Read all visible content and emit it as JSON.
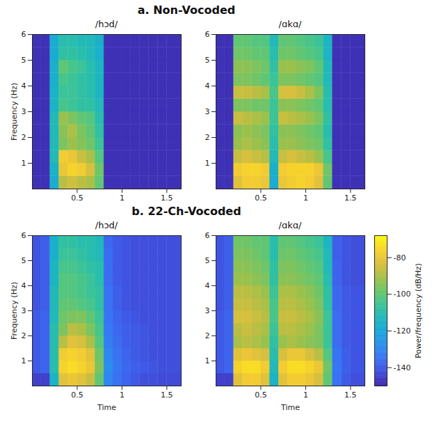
{
  "chart_data": [
    {
      "type": "heatmap",
      "group": "a. Non-Vocoded",
      "title": "/hɔd/",
      "ylabel": "Frequency (Hz)",
      "xlim": [
        0,
        1.66
      ],
      "ylim": [
        0,
        6
      ],
      "xticks": [
        0.5,
        1,
        1.5
      ],
      "yticks": [
        1,
        2,
        3,
        4,
        5,
        6
      ],
      "x_bins": [
        0,
        0.1,
        0.2,
        0.3,
        0.4,
        0.5,
        0.6,
        0.7,
        0.8,
        0.9,
        1,
        1.1,
        1.2,
        1.3,
        1.4,
        1.5,
        1.66
      ],
      "y_bins": [
        0,
        0.5,
        1,
        1.5,
        2,
        2.5,
        3,
        3.5,
        4,
        4.5,
        5,
        5.5,
        6
      ],
      "cells": [
        [
          -148,
          -148,
          -118,
          -88,
          -85,
          -88,
          -90,
          -100,
          -148,
          -148,
          -148,
          -148,
          -148,
          -148,
          -148,
          -148
        ],
        [
          -148,
          -148,
          -115,
          -80,
          -76,
          -78,
          -84,
          -98,
          -148,
          -148,
          -148,
          -148,
          -148,
          -148,
          -148,
          -148
        ],
        [
          -148,
          -148,
          -112,
          -78,
          -80,
          -86,
          -90,
          -102,
          -148,
          -148,
          -148,
          -148,
          -148,
          -148,
          -148,
          -148
        ],
        [
          -148,
          -148,
          -112,
          -96,
          -92,
          -95,
          -98,
          -106,
          -148,
          -148,
          -148,
          -148,
          -148,
          -148,
          -148,
          -148
        ],
        [
          -148,
          -148,
          -112,
          -94,
          -90,
          -96,
          -100,
          -108,
          -148,
          -148,
          -148,
          -148,
          -148,
          -148,
          -148,
          -148
        ],
        [
          -148,
          -148,
          -112,
          -92,
          -96,
          -100,
          -102,
          -110,
          -148,
          -148,
          -148,
          -148,
          -148,
          -148,
          -148,
          -148
        ],
        [
          -148,
          -148,
          -115,
          -104,
          -106,
          -108,
          -108,
          -112,
          -148,
          -148,
          -148,
          -148,
          -148,
          -148,
          -148,
          -148
        ],
        [
          -148,
          -148,
          -115,
          -106,
          -106,
          -108,
          -110,
          -114,
          -148,
          -148,
          -148,
          -148,
          -148,
          -148,
          -148,
          -148
        ],
        [
          -148,
          -148,
          -116,
          -104,
          -106,
          -108,
          -110,
          -114,
          -148,
          -148,
          -148,
          -148,
          -148,
          -148,
          -148,
          -148
        ],
        [
          -148,
          -148,
          -116,
          -100,
          -104,
          -106,
          -110,
          -114,
          -148,
          -148,
          -148,
          -148,
          -148,
          -148,
          -148,
          -148
        ],
        [
          -148,
          -148,
          -118,
          -108,
          -108,
          -110,
          -112,
          -116,
          -148,
          -148,
          -148,
          -148,
          -148,
          -148,
          -148,
          -148
        ],
        [
          -148,
          -148,
          -118,
          -110,
          -110,
          -112,
          -112,
          -116,
          -148,
          -148,
          -148,
          -148,
          -148,
          -148,
          -148,
          -148
        ]
      ]
    },
    {
      "type": "heatmap",
      "group": "a. Non-Vocoded",
      "title": "/ɑkɑ/",
      "xlim": [
        0,
        1.66
      ],
      "ylim": [
        0,
        6
      ],
      "xticks": [
        0.5,
        1,
        1.5
      ],
      "yticks": [
        1,
        2,
        3,
        4,
        5,
        6
      ],
      "x_bins": [
        0,
        0.1,
        0.2,
        0.3,
        0.4,
        0.5,
        0.6,
        0.7,
        0.8,
        0.9,
        1,
        1.1,
        1.2,
        1.3,
        1.4,
        1.5,
        1.66
      ],
      "y_bins": [
        0,
        0.5,
        1,
        1.5,
        2,
        2.5,
        3,
        3.5,
        4,
        4.5,
        5,
        5.5,
        6
      ],
      "cells": [
        [
          -148,
          -148,
          -82,
          -78,
          -78,
          -80,
          -118,
          -80,
          -78,
          -76,
          -78,
          -82,
          -100,
          -148,
          -148,
          -148
        ],
        [
          -148,
          -148,
          -78,
          -76,
          -76,
          -78,
          -116,
          -78,
          -76,
          -76,
          -76,
          -80,
          -98,
          -148,
          -148,
          -148
        ],
        [
          -148,
          -148,
          -86,
          -84,
          -86,
          -88,
          -112,
          -86,
          -84,
          -86,
          -88,
          -92,
          -104,
          -148,
          -148,
          -148
        ],
        [
          -148,
          -148,
          -92,
          -90,
          -92,
          -94,
          -110,
          -92,
          -92,
          -94,
          -96,
          -98,
          -108,
          -148,
          -148,
          -148
        ],
        [
          -148,
          -148,
          -94,
          -92,
          -94,
          -96,
          -108,
          -94,
          -94,
          -96,
          -98,
          -100,
          -110,
          -148,
          -148,
          -148
        ],
        [
          -148,
          -148,
          -86,
          -88,
          -90,
          -92,
          -106,
          -86,
          -88,
          -90,
          -92,
          -96,
          -108,
          -148,
          -148,
          -148
        ],
        [
          -148,
          -148,
          -96,
          -96,
          -98,
          -98,
          -106,
          -94,
          -94,
          -96,
          -98,
          -100,
          -110,
          -148,
          -148,
          -148
        ],
        [
          -148,
          -148,
          -86,
          -86,
          -88,
          -90,
          -104,
          -84,
          -84,
          -86,
          -90,
          -96,
          -110,
          -148,
          -148,
          -148
        ],
        [
          -148,
          -148,
          -96,
          -96,
          -98,
          -100,
          -106,
          -96,
          -96,
          -98,
          -100,
          -102,
          -112,
          -148,
          -148,
          -148
        ],
        [
          -148,
          -148,
          -94,
          -94,
          -96,
          -98,
          -108,
          -92,
          -92,
          -94,
          -96,
          -100,
          -112,
          -148,
          -148,
          -148
        ],
        [
          -148,
          -148,
          -98,
          -98,
          -100,
          -100,
          -110,
          -98,
          -98,
          -100,
          -102,
          -104,
          -114,
          -148,
          -148,
          -148
        ],
        [
          -148,
          -148,
          -100,
          -100,
          -102,
          -102,
          -112,
          -100,
          -100,
          -102,
          -104,
          -106,
          -114,
          -148,
          -148,
          -148
        ]
      ]
    },
    {
      "type": "heatmap",
      "group": "b. 22-Ch-Vocoded",
      "title": "/hɔd/",
      "xlabel": "Time",
      "ylabel": "Frequency (Hz)",
      "xlim": [
        0,
        1.66
      ],
      "ylim": [
        0,
        6
      ],
      "xticks": [
        0.5,
        1,
        1.5
      ],
      "yticks": [
        1,
        2,
        3,
        4,
        5,
        6
      ],
      "x_bins": [
        0,
        0.1,
        0.2,
        0.3,
        0.4,
        0.5,
        0.6,
        0.7,
        0.8,
        0.9,
        1,
        1.1,
        1.2,
        1.3,
        1.4,
        1.5,
        1.66
      ],
      "y_bins": [
        0,
        0.5,
        1,
        1.5,
        2,
        2.5,
        3,
        3.5,
        4,
        4.5,
        5,
        5.5,
        6
      ],
      "cells": [
        [
          -145,
          -145,
          -115,
          -82,
          -80,
          -82,
          -86,
          -100,
          -130,
          -135,
          -138,
          -140,
          -142,
          -142,
          -143,
          -143
        ],
        [
          -140,
          -138,
          -110,
          -76,
          -74,
          -76,
          -80,
          -96,
          -128,
          -134,
          -137,
          -139,
          -140,
          -141,
          -142,
          -142
        ],
        [
          -140,
          -138,
          -110,
          -78,
          -76,
          -78,
          -82,
          -98,
          -130,
          -135,
          -138,
          -140,
          -141,
          -142,
          -142,
          -142
        ],
        [
          -140,
          -138,
          -110,
          -88,
          -82,
          -84,
          -90,
          -102,
          -132,
          -136,
          -139,
          -140,
          -141,
          -142,
          -142,
          -142
        ],
        [
          -140,
          -138,
          -110,
          -96,
          -88,
          -90,
          -96,
          -104,
          -133,
          -137,
          -139,
          -140,
          -141,
          -142,
          -142,
          -142
        ],
        [
          -140,
          -138,
          -112,
          -98,
          -96,
          -96,
          -100,
          -106,
          -134,
          -138,
          -140,
          -141,
          -142,
          -142,
          -142,
          -142
        ],
        [
          -141,
          -139,
          -112,
          -100,
          -100,
          -102,
          -104,
          -108,
          -135,
          -139,
          -141,
          -142,
          -142,
          -142,
          -142,
          -142
        ],
        [
          -141,
          -139,
          -112,
          -102,
          -102,
          -104,
          -106,
          -108,
          -135,
          -139,
          -141,
          -142,
          -142,
          -142,
          -142,
          -142
        ],
        [
          -141,
          -139,
          -114,
          -102,
          -102,
          -104,
          -106,
          -110,
          -136,
          -140,
          -141,
          -142,
          -142,
          -142,
          -142,
          -142
        ],
        [
          -141,
          -139,
          -114,
          -104,
          -104,
          -106,
          -108,
          -110,
          -136,
          -140,
          -141,
          -142,
          -142,
          -142,
          -142,
          -142
        ],
        [
          -141,
          -139,
          -116,
          -106,
          -106,
          -108,
          -110,
          -112,
          -136,
          -140,
          -141,
          -142,
          -142,
          -142,
          -142,
          -142
        ],
        [
          -141,
          -139,
          -116,
          -108,
          -108,
          -110,
          -110,
          -112,
          -137,
          -140,
          -141,
          -142,
          -142,
          -142,
          -142,
          -142
        ]
      ]
    },
    {
      "type": "heatmap",
      "group": "b. 22-Ch-Vocoded",
      "title": "/ɑkɑ/",
      "xlabel": "Time",
      "xlim": [
        0,
        1.66
      ],
      "ylim": [
        0,
        6
      ],
      "xticks": [
        0.5,
        1,
        1.5
      ],
      "yticks": [
        1,
        2,
        3,
        4,
        5,
        6
      ],
      "x_bins": [
        0,
        0.1,
        0.2,
        0.3,
        0.4,
        0.5,
        0.6,
        0.7,
        0.8,
        0.9,
        1,
        1.1,
        1.2,
        1.3,
        1.4,
        1.5,
        1.66
      ],
      "y_bins": [
        0,
        0.5,
        1,
        1.5,
        2,
        2.5,
        3,
        3.5,
        4,
        4.5,
        5,
        5.5,
        6
      ],
      "cells": [
        [
          -145,
          -145,
          -82,
          -78,
          -78,
          -82,
          -115,
          -82,
          -78,
          -78,
          -80,
          -84,
          -100,
          -135,
          -140,
          -142
        ],
        [
          -140,
          -138,
          -76,
          -74,
          -74,
          -78,
          -112,
          -78,
          -74,
          -74,
          -76,
          -80,
          -98,
          -134,
          -139,
          -141
        ],
        [
          -140,
          -138,
          -82,
          -80,
          -82,
          -84,
          -110,
          -84,
          -80,
          -80,
          -84,
          -88,
          -102,
          -134,
          -139,
          -141
        ],
        [
          -140,
          -138,
          -90,
          -88,
          -90,
          -92,
          -108,
          -92,
          -90,
          -92,
          -94,
          -96,
          -106,
          -136,
          -140,
          -141
        ],
        [
          -140,
          -138,
          -88,
          -86,
          -88,
          -90,
          -106,
          -88,
          -88,
          -90,
          -92,
          -96,
          -106,
          -136,
          -140,
          -141
        ],
        [
          -140,
          -138,
          -84,
          -84,
          -86,
          -88,
          -104,
          -86,
          -86,
          -88,
          -90,
          -94,
          -106,
          -136,
          -140,
          -141
        ],
        [
          -141,
          -139,
          -86,
          -86,
          -88,
          -90,
          -104,
          -88,
          -88,
          -90,
          -92,
          -96,
          -108,
          -137,
          -140,
          -141
        ],
        [
          -141,
          -139,
          -88,
          -88,
          -90,
          -92,
          -106,
          -90,
          -90,
          -92,
          -94,
          -98,
          -108,
          -137,
          -140,
          -141
        ],
        [
          -141,
          -139,
          -92,
          -92,
          -94,
          -96,
          -108,
          -94,
          -94,
          -96,
          -98,
          -100,
          -110,
          -138,
          -141,
          -142
        ],
        [
          -141,
          -139,
          -94,
          -94,
          -96,
          -98,
          -108,
          -96,
          -96,
          -98,
          -100,
          -102,
          -112,
          -138,
          -141,
          -142
        ],
        [
          -141,
          -139,
          -96,
          -96,
          -98,
          -100,
          -110,
          -98,
          -98,
          -100,
          -102,
          -104,
          -112,
          -139,
          -141,
          -142
        ],
        [
          -141,
          -139,
          -98,
          -98,
          -100,
          -100,
          -110,
          -100,
          -100,
          -102,
          -104,
          -106,
          -114,
          -139,
          -141,
          -142
        ]
      ],
      "colorbar": {
        "lim": [
          -150,
          -68
        ],
        "ticks": [
          -80,
          -100,
          -120,
          -140
        ],
        "label": "Power/frequency (dB/Hz)"
      }
    }
  ]
}
